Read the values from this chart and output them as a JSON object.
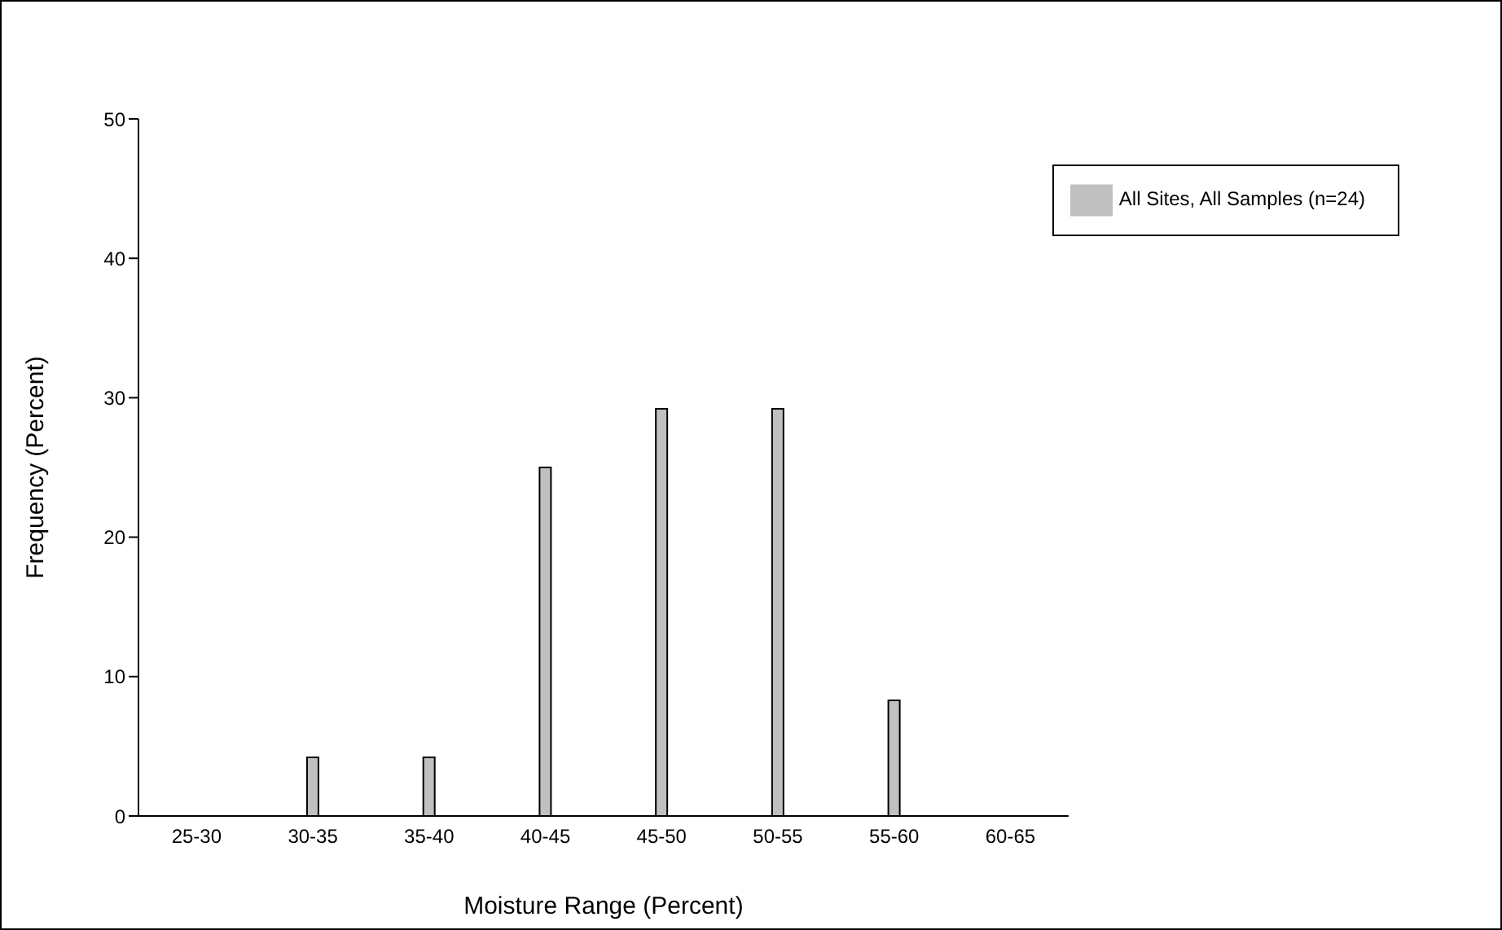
{
  "chart_data": {
    "type": "bar",
    "xlabel": "Moisture Range (Percent)",
    "ylabel": "Frequency (Percent)",
    "categories": [
      "25-30",
      "30-35",
      "35-40",
      "40-45",
      "45-50",
      "50-55",
      "55-60",
      "60-65"
    ],
    "series": [
      {
        "name": "All Sites, All Samples (n=24)",
        "color": "#c0c0c0",
        "values": [
          0,
          4.2,
          4.2,
          25,
          29.2,
          29.2,
          8.3,
          0
        ]
      }
    ],
    "ylim": [
      0,
      50
    ],
    "yticks": [
      0,
      10,
      20,
      30,
      40,
      50
    ],
    "grid": false,
    "legend": "top right"
  }
}
